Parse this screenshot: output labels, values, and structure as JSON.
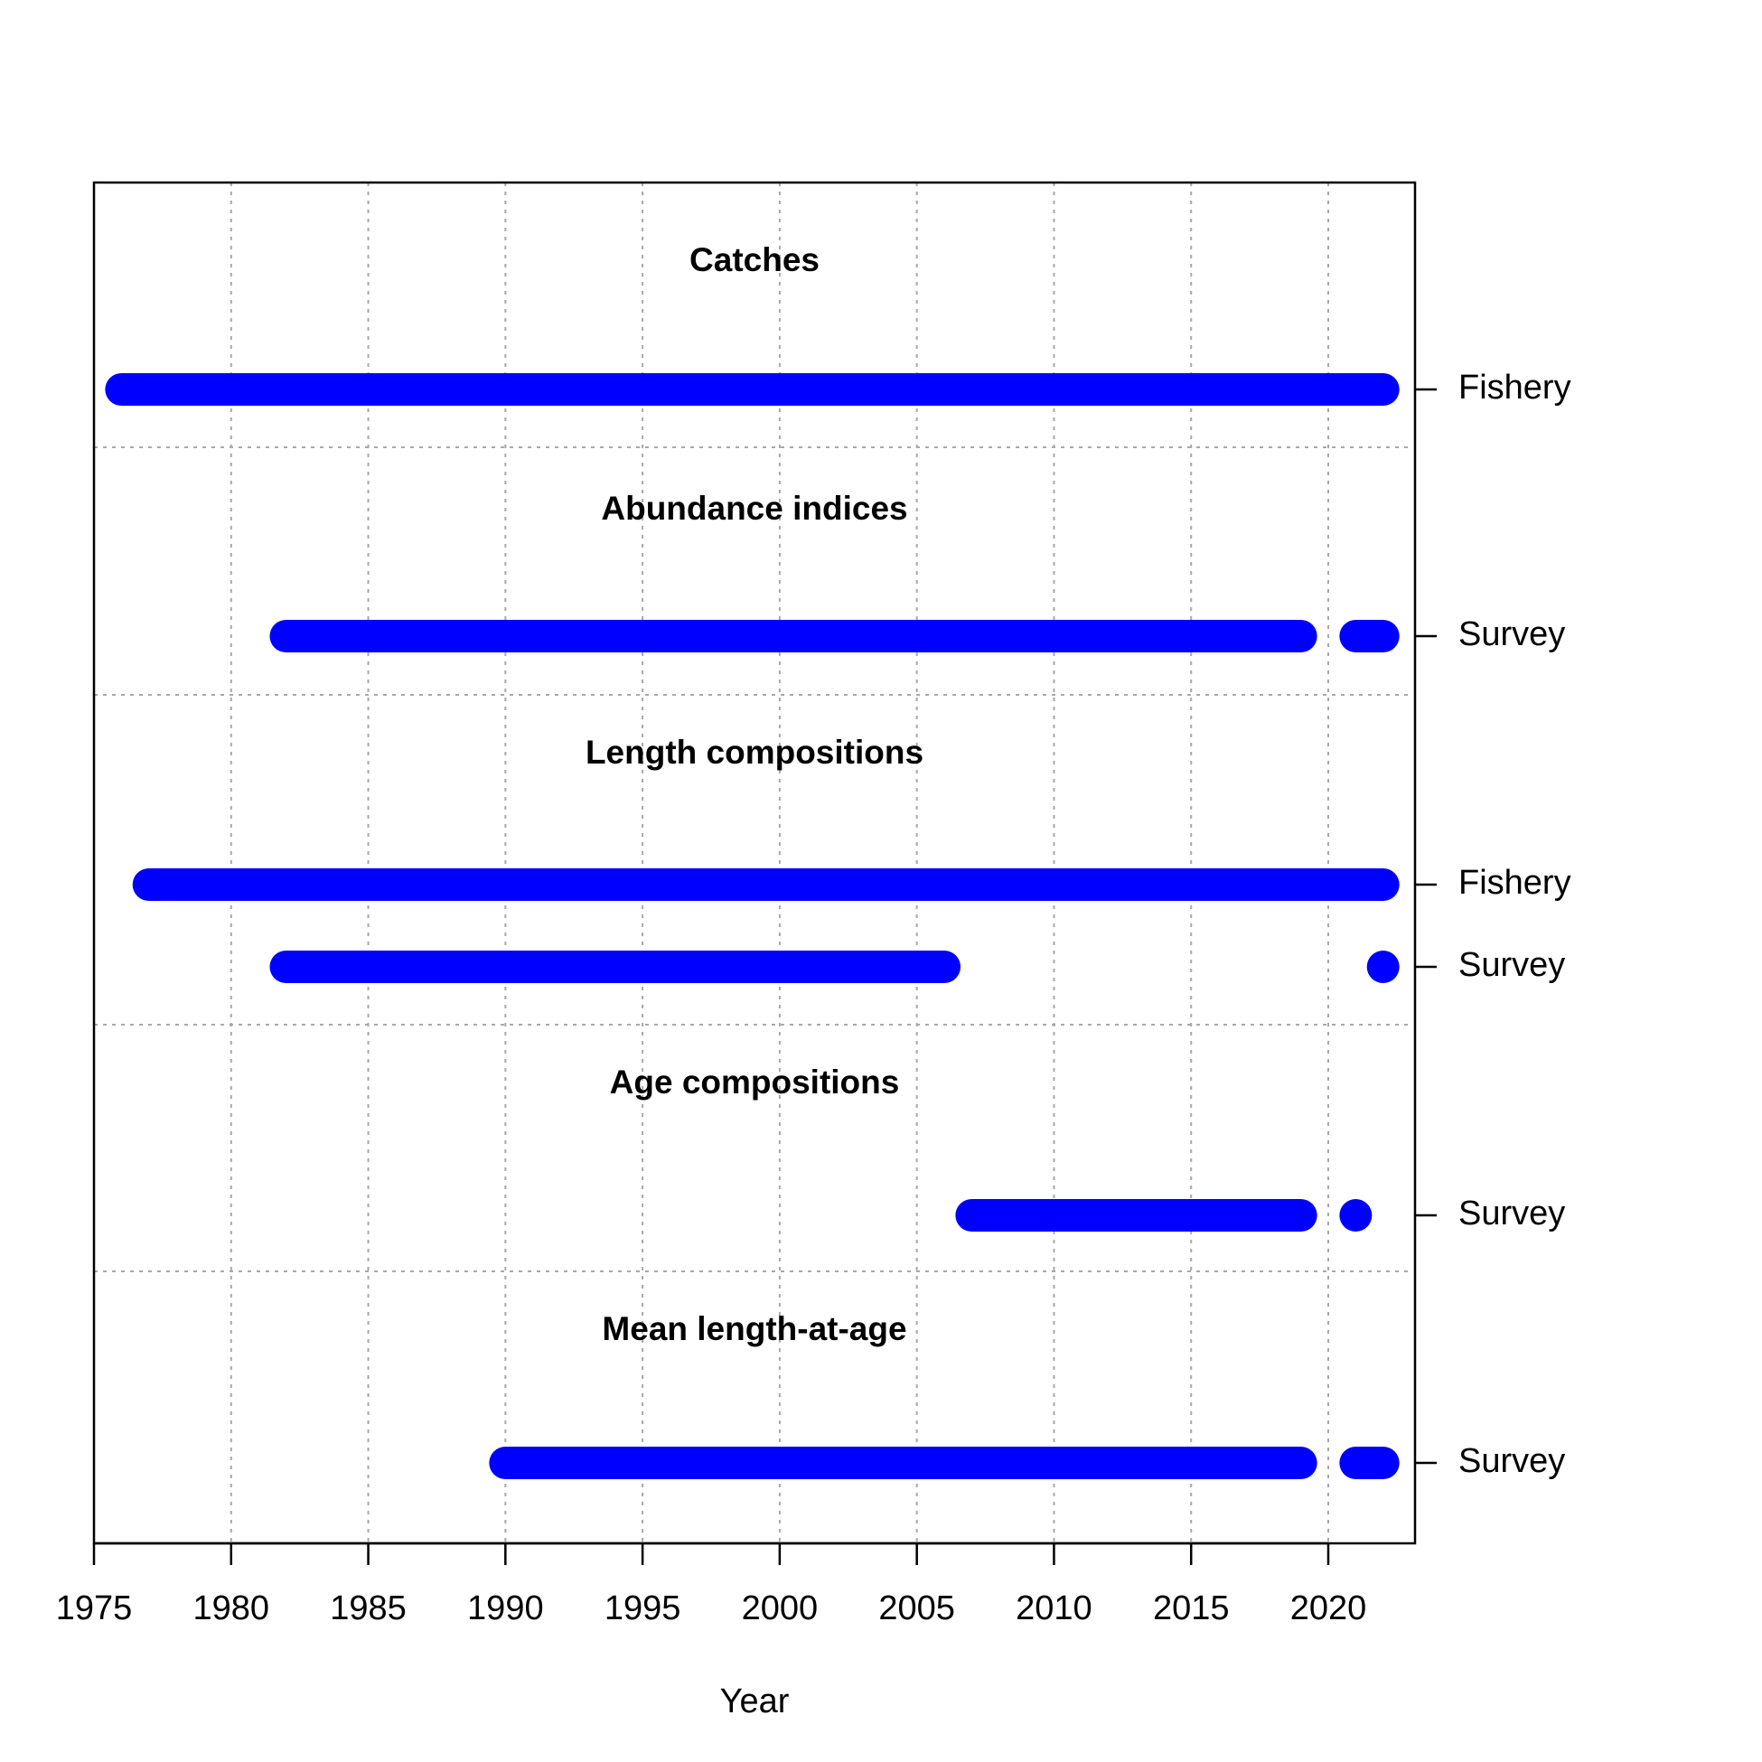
{
  "chart_data": {
    "type": "timeline",
    "xlabel": "Year",
    "xlim": [
      1975,
      2023
    ],
    "x_ticks": [
      1975,
      1980,
      1985,
      1990,
      1995,
      2000,
      2005,
      2010,
      2015,
      2020
    ],
    "grid": true,
    "color": "#0000ff",
    "sections": [
      {
        "title": "Catches",
        "rows": [
          {
            "label": "Fishery",
            "segments": [
              [
                1976,
                2022
              ]
            ]
          }
        ]
      },
      {
        "title": "Abundance indices",
        "rows": [
          {
            "label": "Survey",
            "segments": [
              [
                1982,
                2019
              ],
              [
                2021,
                2022
              ]
            ]
          }
        ]
      },
      {
        "title": "Length compositions",
        "rows": [
          {
            "label": "Fishery",
            "segments": [
              [
                1977,
                2022
              ]
            ]
          },
          {
            "label": "Survey",
            "segments": [
              [
                1982,
                2006
              ],
              [
                2022,
                2022
              ]
            ]
          }
        ]
      },
      {
        "title": "Age compositions",
        "rows": [
          {
            "label": "Survey",
            "segments": [
              [
                2007,
                2019
              ],
              [
                2021,
                2021
              ]
            ]
          }
        ]
      },
      {
        "title": "Mean length-at-age",
        "rows": [
          {
            "label": "Survey",
            "segments": [
              [
                1990,
                2019
              ],
              [
                2021,
                2022
              ]
            ]
          }
        ]
      }
    ]
  }
}
